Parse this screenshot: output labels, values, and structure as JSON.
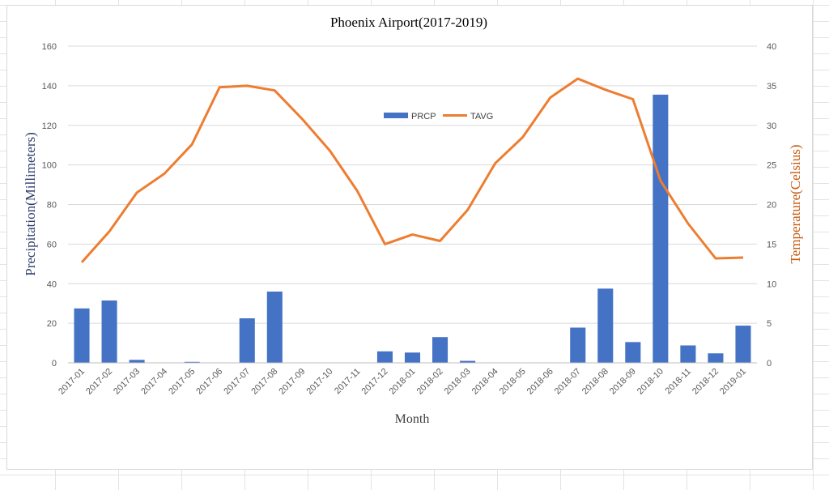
{
  "chart_data": {
    "type": "bar+line",
    "title": "Phoenix Airport(2017-2019)",
    "xlabel": "Month",
    "ylabel_left": "Precipitation(Millimeters)",
    "ylabel_right": "Temperature(Celsius)",
    "ylim_left": [
      0,
      160
    ],
    "yticks_left": [
      0,
      20,
      40,
      60,
      80,
      100,
      120,
      140,
      160
    ],
    "ylim_right": [
      0,
      40
    ],
    "yticks_right": [
      0,
      5,
      10,
      15,
      20,
      25,
      30,
      35,
      40
    ],
    "grid": true,
    "legend_position": "top-center",
    "categories": [
      "2017-01",
      "2017-02",
      "2017-03",
      "2017-04",
      "2017-05",
      "2017-06",
      "2017-07",
      "2017-08",
      "2017-09",
      "2017-10",
      "2017-11",
      "2017-12",
      "2018-01",
      "2018-02",
      "2018-03",
      "2018-04",
      "2018-05",
      "2018-06",
      "2018-07",
      "2018-08",
      "2018-09",
      "2018-10",
      "2018-11",
      "2018-12",
      "2019-01"
    ],
    "series": [
      {
        "name": "PRCP",
        "type": "bar",
        "axis": "left",
        "color": "#4472c4",
        "values": [
          27.5,
          31.5,
          1.5,
          0,
          0.5,
          0,
          22.5,
          36,
          0,
          0,
          0,
          5.8,
          5.2,
          13,
          1,
          0,
          0,
          0,
          17.8,
          37.5,
          10.5,
          135.5,
          8.8,
          4.8,
          18.8
        ]
      },
      {
        "name": "TAVG",
        "type": "line",
        "axis": "right",
        "color": "#ed7d31",
        "values": [
          12.7,
          16.6,
          21.5,
          23.9,
          27.6,
          34.8,
          35,
          34.4,
          30.8,
          26.8,
          21.7,
          15,
          16.2,
          15.4,
          19.3,
          25.2,
          28.5,
          33.5,
          35.9,
          34.5,
          33.3,
          23,
          17.6,
          13.2,
          13.3
        ]
      }
    ]
  }
}
